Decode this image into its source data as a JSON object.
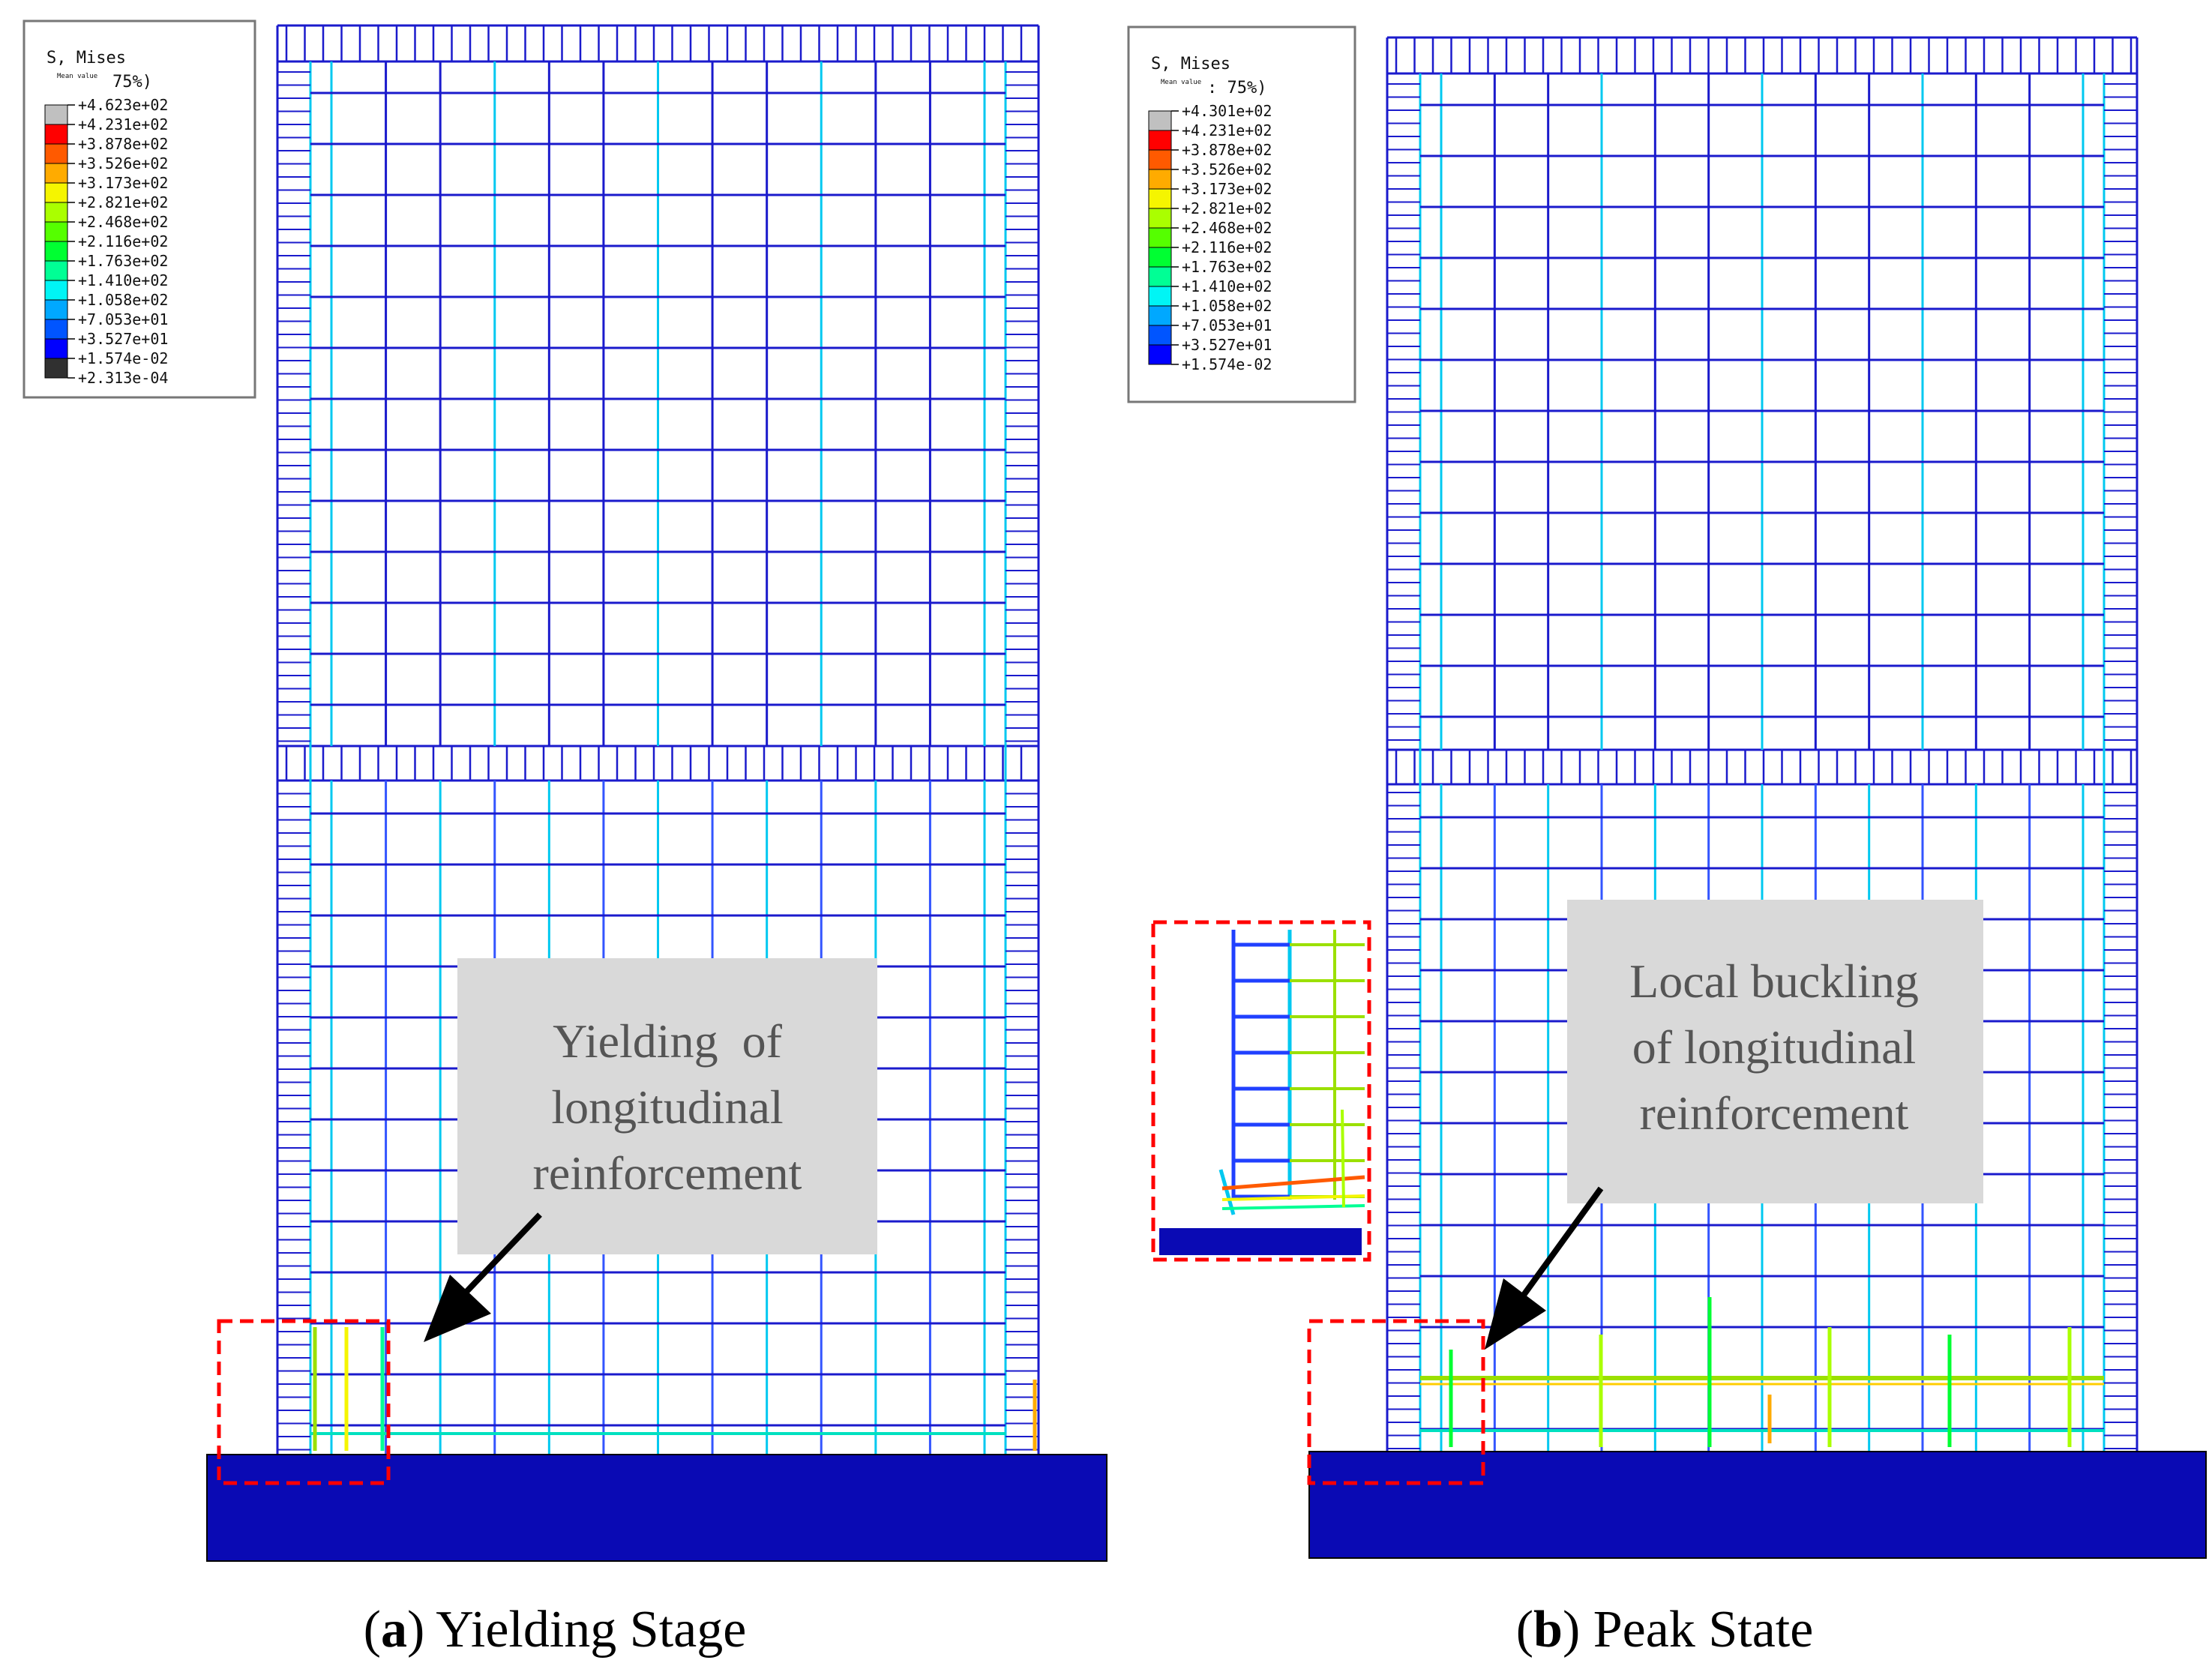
{
  "panels": [
    {
      "id": "a",
      "caption_letter": "a",
      "caption_text": " Yielding Stage",
      "legend": {
        "title": "S, Mises",
        "sub_small": "Mean value",
        "pct": "75%)",
        "entries": [
          "+4.623e+02",
          "+4.231e+02",
          "+3.878e+02",
          "+3.526e+02",
          "+3.173e+02",
          "+2.821e+02",
          "+2.468e+02",
          "+2.116e+02",
          "+1.763e+02",
          "+1.410e+02",
          "+1.058e+02",
          "+7.053e+01",
          "+3.527e+01",
          "+1.574e-02",
          "+2.313e-04"
        ]
      },
      "annotation": [
        "Yielding  of",
        "longitudinal",
        "reinforcement"
      ]
    },
    {
      "id": "b",
      "caption_letter": "b",
      "caption_text": " Peak State",
      "legend": {
        "title": "S, Mises",
        "sub_small": "Mean value",
        "pct": ": 75%)",
        "entries": [
          "+4.301e+02",
          "+4.231e+02",
          "+3.878e+02",
          "+3.526e+02",
          "+3.173e+02",
          "+2.821e+02",
          "+2.468e+02",
          "+2.116e+02",
          "+1.763e+02",
          "+1.410e+02",
          "+1.058e+02",
          "+7.053e+01",
          "+3.527e+01",
          "+1.574e-02"
        ]
      },
      "annotation": [
        "Local buckling",
        "of longitudinal",
        "reinforcement"
      ]
    }
  ],
  "colors": {
    "contour": [
      "#c0c0c0",
      "#ff0000",
      "#ff5a00",
      "#ffab00",
      "#f5f500",
      "#aaff00",
      "#55ff00",
      "#00ff32",
      "#00ff95",
      "#00f5f5",
      "#00a8ff",
      "#0055ff",
      "#0000ff",
      "#303030"
    ],
    "rebar": "#1a1acc",
    "base": "#0a0ab4",
    "highlight_box": "#ff0000",
    "annotation_bg": "#d9d9d9"
  }
}
